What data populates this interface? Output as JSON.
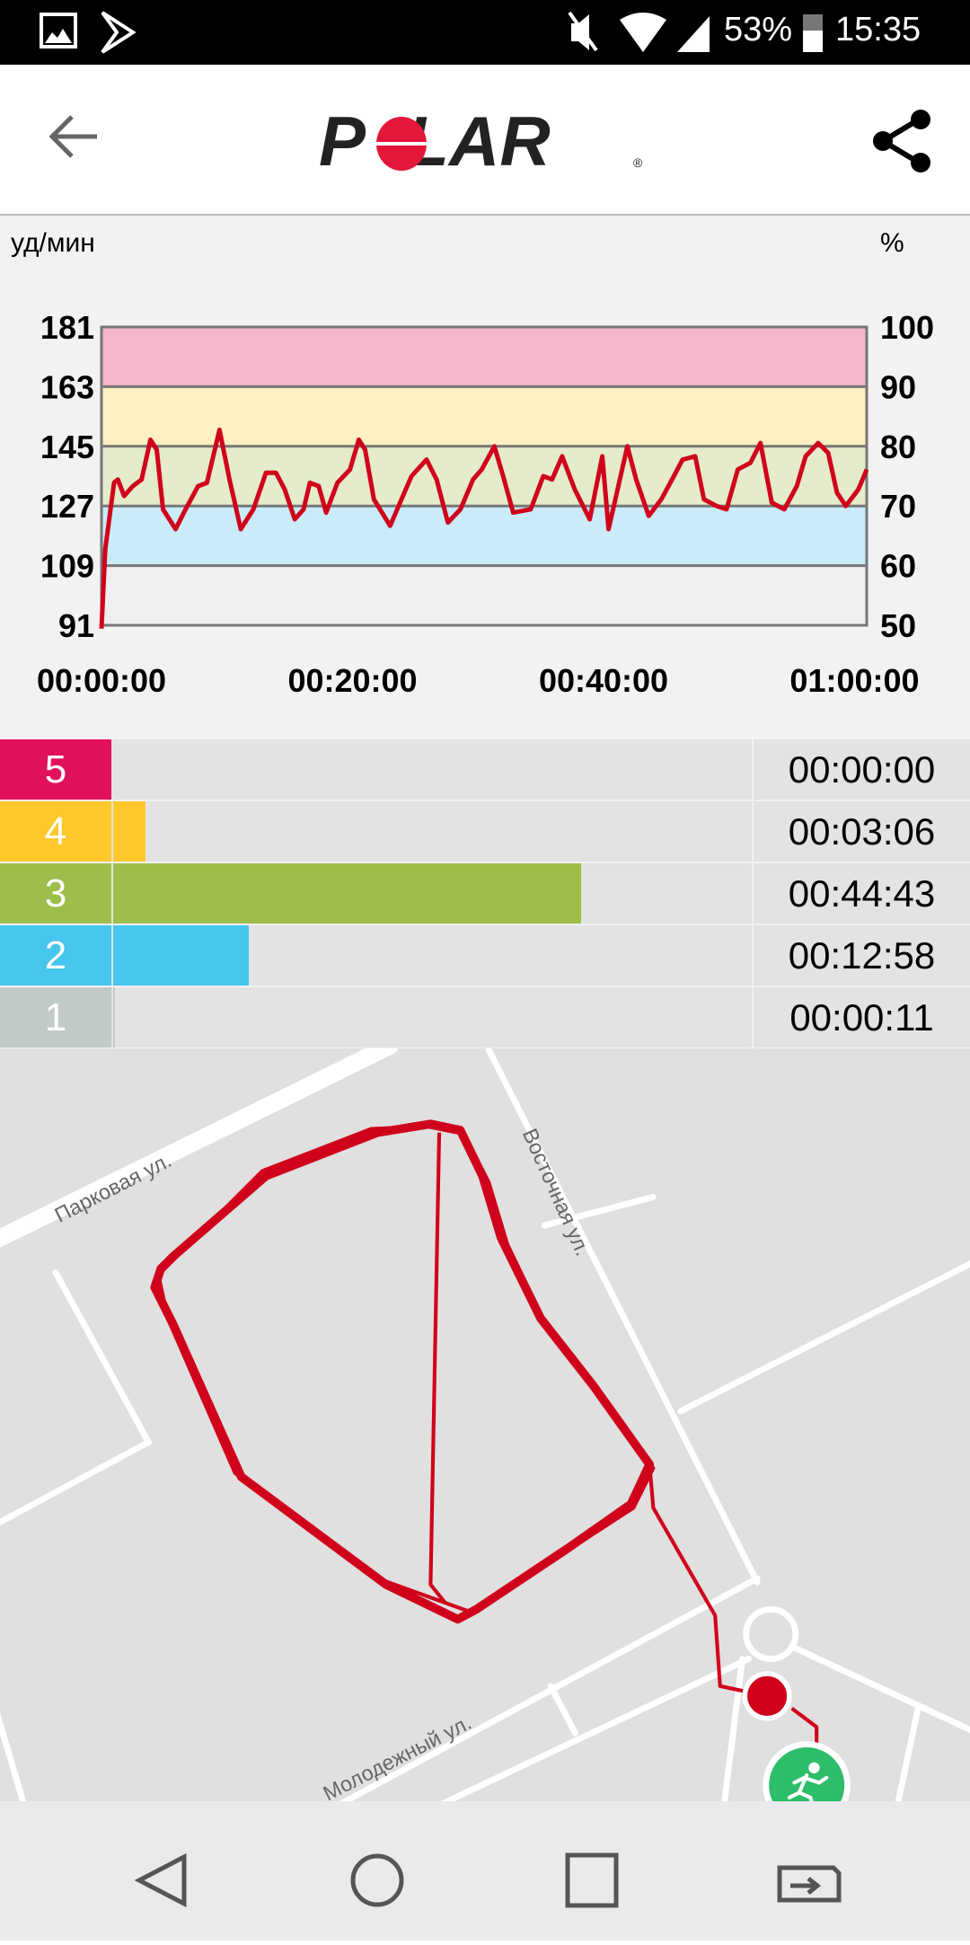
{
  "status_bar": {
    "battery": "53%",
    "time": "15:35",
    "icons": [
      "gallery-icon",
      "play-store-icon",
      "mute-icon",
      "wifi-icon",
      "signal-icon",
      "battery-icon"
    ]
  },
  "header": {
    "logo": "POLAR",
    "back_icon": "arrow-left-icon",
    "share_icon": "share-icon"
  },
  "chart_data": {
    "type": "line",
    "ylabel": "уд/мин",
    "ylabel_right": "%",
    "ylim": [
      91,
      181
    ],
    "ylim_right": [
      50,
      100
    ],
    "y_ticks": [
      "181",
      "163",
      "145",
      "127",
      "109",
      "91"
    ],
    "y_ticks_right": [
      "100",
      "90",
      "80",
      "70",
      "60",
      "50"
    ],
    "x_ticks": [
      "00:00:00",
      "00:20:00",
      "00:40:00",
      "01:00:00"
    ],
    "xlim": [
      "00:00:00",
      "01:00:58"
    ],
    "zone_bands": [
      {
        "from": 163,
        "to": 181,
        "color": "#f4b6cc"
      },
      {
        "from": 145,
        "to": 163,
        "color": "#fdf0c3"
      },
      {
        "from": 127,
        "to": 145,
        "color": "#e4eccb"
      },
      {
        "from": 109,
        "to": 127,
        "color": "#c9ecf8"
      },
      {
        "from": 91,
        "to": 109,
        "color": "#efefef"
      }
    ],
    "line_color": "#d0021b",
    "series": [
      {
        "x": [
          "00:00:00",
          "00:00:18",
          "00:01:00",
          "00:01:18",
          "00:01:48",
          "00:02:30",
          "00:03:12",
          "00:03:54",
          "00:04:24",
          "00:04:54",
          "00:05:54",
          "00:06:42",
          "00:07:42",
          "00:08:24",
          "00:08:54",
          "00:09:24",
          "00:10:12",
          "00:11:06",
          "00:12:06",
          "00:13:06",
          "00:13:54",
          "00:14:36",
          "00:15:24",
          "00:16:06",
          "00:16:36",
          "00:17:18",
          "00:17:54",
          "00:18:48",
          "00:19:48",
          "00:20:30",
          "00:21:00",
          "00:21:42",
          "00:23:00",
          "00:23:54",
          "00:24:42",
          "00:25:54",
          "00:26:42",
          "00:27:36",
          "00:28:36",
          "00:29:36",
          "00:30:18",
          "00:31:18",
          "00:32:00",
          "00:32:48",
          "00:34:12",
          "00:35:12",
          "00:35:54",
          "00:36:42",
          "00:37:42",
          "00:38:54",
          "00:39:54",
          "00:40:24",
          "00:41:54",
          "00:42:36",
          "00:43:36",
          "00:44:36",
          "00:45:36",
          "00:46:18",
          "00:47:18",
          "00:48:00",
          "00:49:00",
          "00:49:48",
          "00:50:42",
          "00:51:42",
          "00:52:30",
          "00:53:24",
          "00:54:24",
          "00:55:24",
          "00:56:06",
          "00:57:06",
          "00:57:54",
          "00:58:36",
          "00:59:18",
          "01:00:18",
          "01:00:58"
        ],
        "y": [
          90,
          114,
          134,
          135,
          130,
          133,
          135,
          147,
          144,
          126,
          120,
          126,
          133,
          134,
          142,
          150,
          135,
          120,
          126,
          137,
          137,
          132,
          123,
          126,
          134,
          133,
          125,
          134,
          138,
          147,
          144,
          129,
          121,
          129,
          136,
          141,
          135,
          122,
          126,
          135,
          138,
          145,
          136,
          125,
          126,
          136,
          135,
          142,
          132,
          123,
          142,
          120,
          145,
          135,
          124,
          129,
          136,
          141,
          142,
          129,
          127,
          126,
          138,
          140,
          146,
          128,
          126,
          133,
          142,
          146,
          143,
          131,
          127,
          132,
          138
        ]
      }
    ]
  },
  "zones": [
    {
      "label": "5",
      "time": "00:00:00",
      "color": "#e0105b"
    },
    {
      "label": "4",
      "time": "00:03:06",
      "color": "#ffc82c"
    },
    {
      "label": "3",
      "time": "00:44:43",
      "color": "#9ebe4b"
    },
    {
      "label": "2",
      "time": "00:12:58",
      "color": "#47c6ee"
    },
    {
      "label": "1",
      "time": "00:00:11",
      "color": "#c2cbca"
    }
  ],
  "map": {
    "streets": [
      "Парковая ул.",
      "Восточная ул.",
      "Молодежный ул."
    ],
    "route_color": "#d0021b",
    "end_marker_color": "#d0021b",
    "start_marker_color": "#2ebd68",
    "start_icon": "running-person-icon"
  },
  "nav_bar": {
    "icons": [
      "back-triangle-icon",
      "home-circle-icon",
      "recents-square-icon",
      "switch-app-icon"
    ]
  }
}
